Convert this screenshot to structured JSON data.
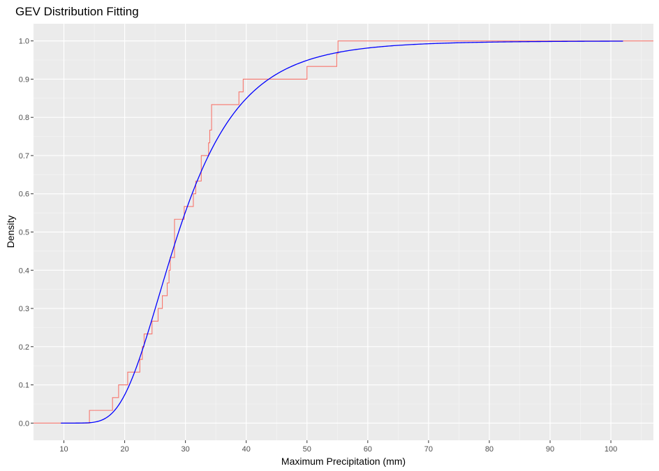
{
  "chart_data": {
    "type": "line",
    "title": "GEV Distribution Fitting",
    "xlabel": "Maximum Precipitation (mm)",
    "ylabel": "Density",
    "xlim": [
      5,
      107
    ],
    "ylim": [
      -0.045,
      1.045
    ],
    "x_ticks": [
      10,
      20,
      30,
      40,
      50,
      60,
      70,
      80,
      90,
      100
    ],
    "y_ticks": [
      0.0,
      0.1,
      0.2,
      0.3,
      0.4,
      0.5,
      0.6,
      0.7,
      0.8,
      0.9,
      1.0
    ],
    "y_tick_labels": [
      "0.0",
      "0.1",
      "0.2",
      "0.3",
      "0.4",
      "0.5",
      "0.6",
      "0.7",
      "0.8",
      "0.9",
      "1.0"
    ],
    "grid": true,
    "background": "#ebebeb",
    "series": [
      {
        "kind": "step",
        "color": "#f8766d",
        "x": [
          14.2,
          18.0,
          19.0,
          20.5,
          22.5,
          22.9,
          23.2,
          24.5,
          25.5,
          26.2,
          27.0,
          27.3,
          27.5,
          28.2,
          29.8,
          31.3,
          31.7,
          32.6,
          33.8,
          34.0,
          34.3,
          38.8,
          39.5,
          50.0,
          54.9
        ],
        "y": [
          0.0333,
          0.0667,
          0.1,
          0.1333,
          0.1667,
          0.2,
          0.2333,
          0.2667,
          0.3,
          0.3333,
          0.3667,
          0.4,
          0.4333,
          0.5333,
          0.5667,
          0.6,
          0.6333,
          0.7,
          0.7333,
          0.7667,
          0.8333,
          0.8667,
          0.9,
          0.9333,
          0.9667
        ],
        "final_x": 55.1,
        "start_x": 5,
        "end_x": 107
      },
      {
        "kind": "cdf",
        "color": "#0000ff",
        "distribution": "GEV",
        "location": 26.3,
        "scale": 6.9,
        "shape": 0.1,
        "x_range": [
          9.5,
          102
        ]
      }
    ]
  }
}
